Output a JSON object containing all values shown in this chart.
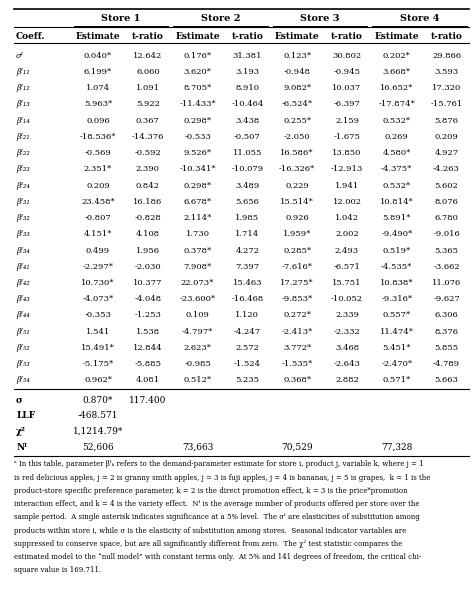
{
  "col_groups": [
    "Store 1",
    "Store 2",
    "Store 3",
    "Store 4"
  ],
  "col_headers": [
    "Coeff.",
    "Estimate",
    "t-ratio",
    "Estimate",
    "t-ratio",
    "Estimate",
    "t-ratio",
    "Estimate",
    "t-ratio"
  ],
  "rows": [
    [
      "σᴵ",
      "0.040*",
      "12.642",
      "0.176*",
      "31.381",
      "0.123*",
      "30.802",
      "0.202*",
      "29.866"
    ],
    [
      "βᴵ₁₁",
      "6.199*",
      "6.060",
      "3.620*",
      "3.193",
      "-0.948",
      "-0.945",
      "3.668*",
      "3.593"
    ],
    [
      "βᴵ₁₂",
      "1.074",
      "1.091",
      "8.705*",
      "8.910",
      "9.082*",
      "10.037",
      "16.652*",
      "17.320"
    ],
    [
      "βᴵ₁₃",
      "5.963*",
      "5.922",
      "-11.433*",
      "-10.464",
      "-6.524*",
      "-6.397",
      "-17.874*",
      "-15.761"
    ],
    [
      "βᴵ₁₄",
      "0.096",
      "0.367",
      "0.298*",
      "3.438",
      "0.255*",
      "2.159",
      "0.532*",
      "5.876"
    ],
    [
      "βᴵ₂₁",
      "-18.536*",
      "-14.376",
      "-0.533",
      "-0.507",
      "-2.050",
      "-1.675",
      "0.269",
      "0.209"
    ],
    [
      "βᴵ₂₂",
      "-0.569",
      "-0.592",
      "9.526*",
      "11.055",
      "16.586*",
      "13.850",
      "4.580*",
      "4.927"
    ],
    [
      "βᴵ₂₃",
      "2.351*",
      "2.390",
      "-10.341*",
      "-10.079",
      "-16.326*",
      "-12.913",
      "-4.375*",
      "-4.263"
    ],
    [
      "βᴵ₂₄",
      "0.209",
      "0.842",
      "0.298*",
      "3.489",
      "0.229",
      "1.941",
      "0.532*",
      "5.602"
    ],
    [
      "βᴵ₃₁",
      "23.458*",
      "16.186",
      "6.678*",
      "5.656",
      "15.514*",
      "12.002",
      "10.814*",
      "8.076"
    ],
    [
      "βᴵ₃₂",
      "-0.807",
      "-0.828",
      "2.114*",
      "1.985",
      "0.926",
      "1.042",
      "5.891*",
      "6.780"
    ],
    [
      "βᴵ₃₃",
      "4.151*",
      "4.108",
      "1.730",
      "1.714",
      "1.959*",
      "2.002",
      "-9.490*",
      "-9.016"
    ],
    [
      "βᴵ₃₄",
      "0.499",
      "1.956",
      "0.378*",
      "4.272",
      "0.285*",
      "2.493",
      "0.519*",
      "5.365"
    ],
    [
      "βᴵ₄₁",
      "-2.297*",
      "-2.030",
      "7.908*",
      "7.397",
      "-7.616*",
      "-6.571",
      "-4.535*",
      "-3.662"
    ],
    [
      "βᴵ₄₂",
      "10.730*",
      "10.377",
      "22.073*",
      "15.463",
      "17.275*",
      "15.751",
      "10.838*",
      "11.076"
    ],
    [
      "βᴵ₄₃",
      "-4.073*",
      "-4.048",
      "-23.600*",
      "-16.468",
      "-9.853*",
      "-10.052",
      "-9.316*",
      "-9.627"
    ],
    [
      "βᴵ₄₄",
      "-0.353",
      "-1.253",
      "0.109",
      "1.120",
      "0.272*",
      "2.339",
      "0.557*",
      "6.306"
    ],
    [
      "βᴵ₅₁",
      "1.541",
      "1.538",
      "-4.797*",
      "-4.247",
      "-2.413*",
      "-2.332",
      "11.474*",
      "8.376"
    ],
    [
      "βᴵ₅₂",
      "15.491*",
      "12.844",
      "2.623*",
      "2.572",
      "3.772*",
      "3.468",
      "5.451*",
      "5.855"
    ],
    [
      "βᴵ₅₃",
      "-5.175*",
      "-5.885",
      "-0.985",
      "-1.524",
      "-1.535*",
      "-2.643",
      "-2.470*",
      "-4.789"
    ],
    [
      "βᴵ₅₄",
      "0.962*",
      "4.081",
      "0.512*",
      "5.235",
      "0.368*",
      "2.882",
      "0.571*",
      "5.663"
    ]
  ],
  "bottom_rows": [
    [
      "σ",
      "0.870*",
      "117.400",
      "",
      "",
      "",
      "",
      "",
      ""
    ],
    [
      "LLF",
      "-468.571",
      "",
      "",
      "",
      "",
      "",
      "",
      ""
    ],
    [
      "χ²",
      "1,1214.79*",
      "",
      "",
      "",
      "",
      "",
      "",
      ""
    ],
    [
      "Nᴵ",
      "52,606",
      "",
      "73,663",
      "",
      "70,529",
      "",
      "77,328",
      ""
    ]
  ],
  "footnote_lines": [
    "ᵃ In this table, parameter βᴵₖ refers to the demand-parameter estimate for store i, product j, variable k, where j = 1",
    "is red delicious apples, j = 2 is granny smith apples, j = 3 is fuji apples, j = 4 is bananas, j = 5 is grapes,  k = 1 is the",
    "product-store specific preference parameter, k = 2 is the direct promotion effect, k = 3 is the price*promotion",
    "interaction effect, and k = 4 is the variety effect.  Nᴵ is the average number of products offered per store over the",
    "sample period.  A single asterisk indicates significance at a 5% level.  The σᴵ are elasticities of substitution among",
    "products within store i, while σ is the elasticity of substitution among stores.  Seasonal indicator variables are",
    "suppressed to conserve space, but are all significantly different from zero.  The χ² test statistic compares the",
    "estimated model to the “null model” with constant terms only.  At 5% and 141 degrees of freedom, the critical chi-",
    "square value is 169.711."
  ]
}
